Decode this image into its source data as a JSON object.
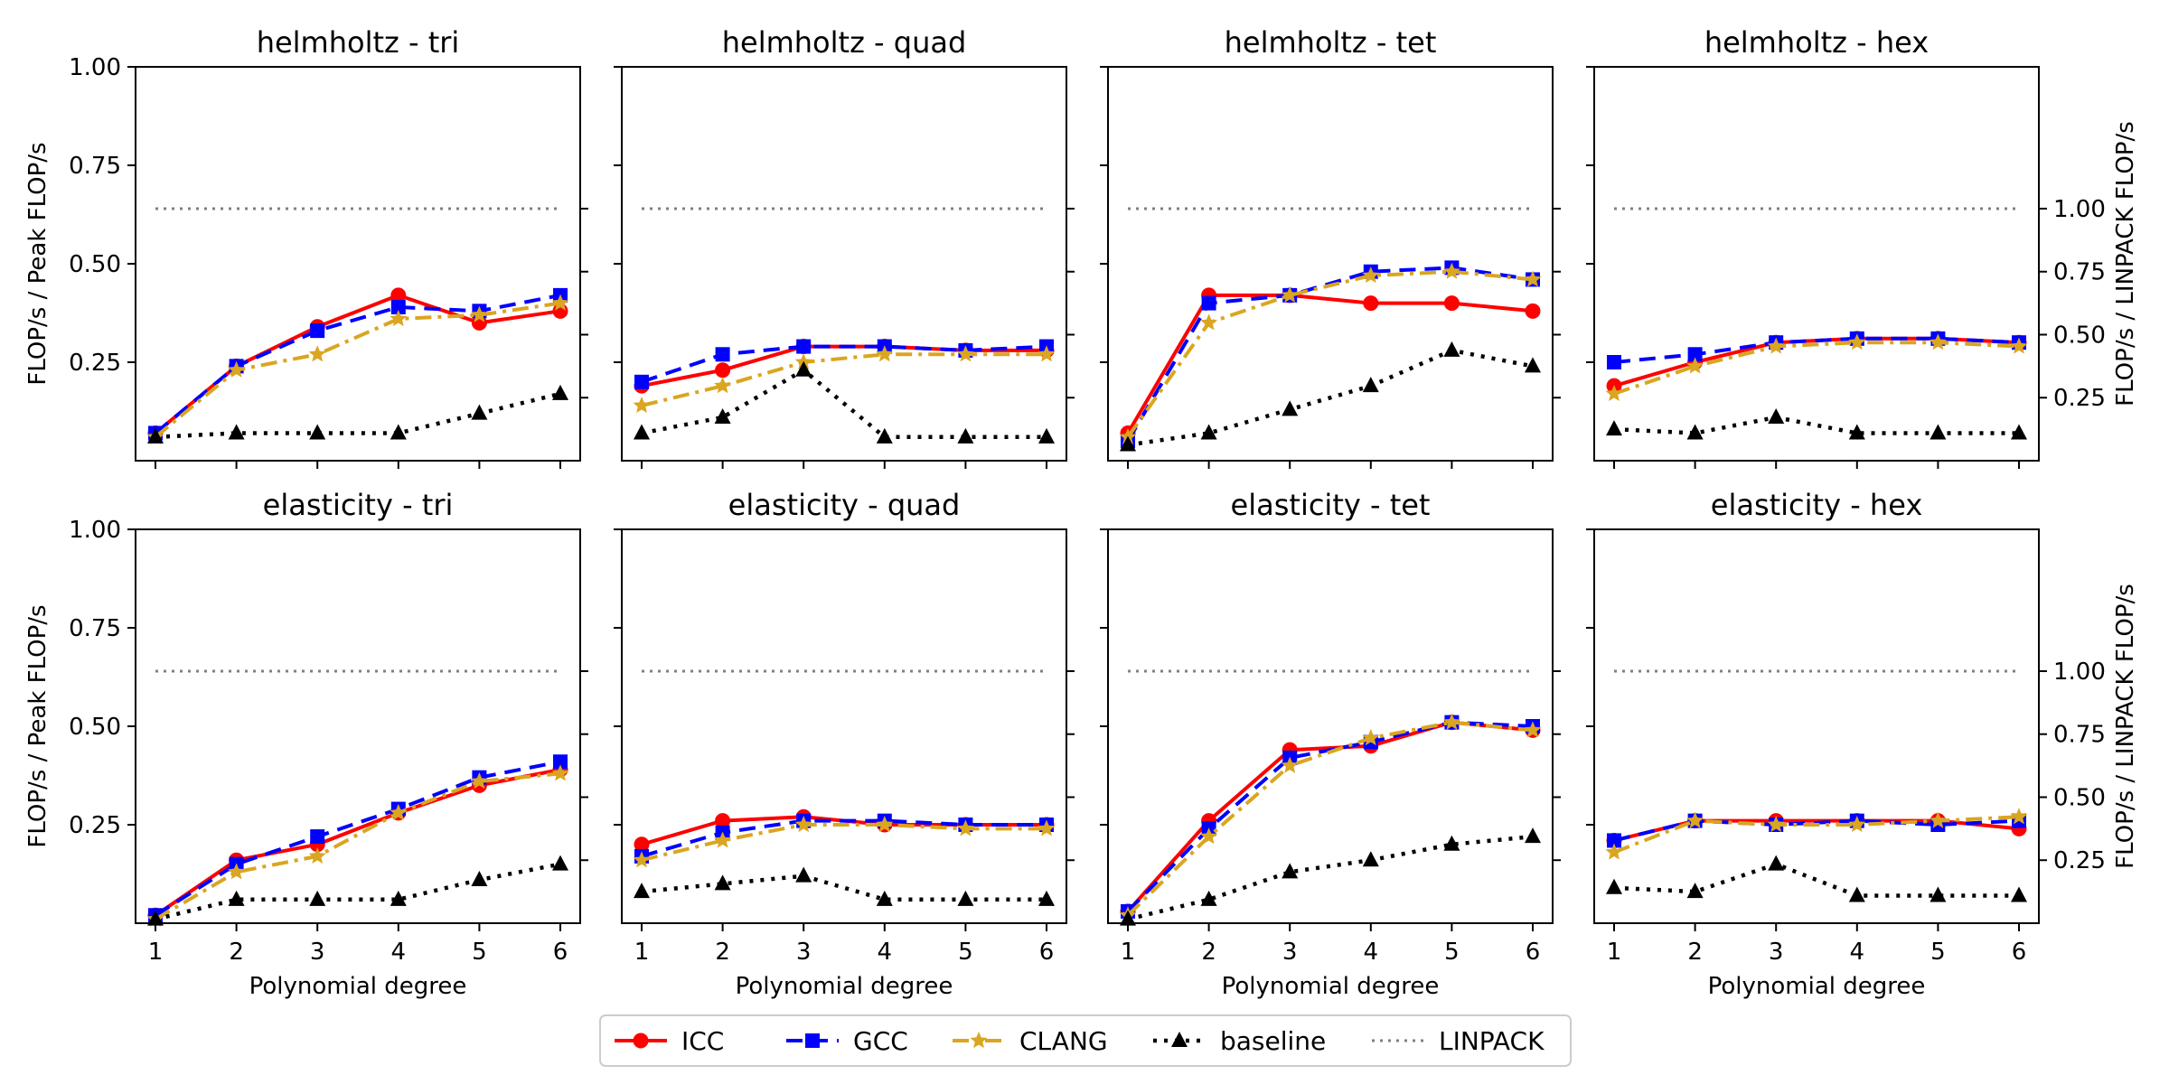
{
  "chart_data": {
    "type": "line",
    "layout": "2 rows x 4 columns of subplots with twin y-axes",
    "x_ticks": [
      1,
      2,
      3,
      4,
      5,
      6
    ],
    "xlabel": "Polynomial degree",
    "ylabel_left": "FLOP/s / Peak FLOP/s",
    "ylabel_right": "FLOP/s / LINPACK FLOP/s",
    "ylim_left": [
      0,
      1.0
    ],
    "yticks_left": [
      "0.25",
      "0.50",
      "0.75",
      "1.00"
    ],
    "yticks_right": [
      "0.25",
      "0.50",
      "0.75",
      "1.00"
    ],
    "linpack_fraction_of_peak": 0.64,
    "grid": false,
    "legend_position": "bottom-center",
    "series_styles": [
      {
        "name": "ICC",
        "color": "#ff0000",
        "dash": "",
        "marker": "circle",
        "width": 4
      },
      {
        "name": "GCC",
        "color": "#0000ff",
        "dash": "18 10",
        "marker": "square",
        "width": 4
      },
      {
        "name": "CLANG",
        "color": "#daa520",
        "dash": "18 7 4 7",
        "marker": "star",
        "width": 4
      },
      {
        "name": "baseline",
        "color": "#000000",
        "dash": "4 8",
        "marker": "triangle",
        "width": 4.5
      },
      {
        "name": "LINPACK",
        "color": "#808080",
        "dash": "3 6",
        "marker": "none",
        "width": 3
      }
    ],
    "panels": [
      {
        "title": "helmholtz - tri",
        "series": [
          {
            "name": "ICC",
            "values": [
              0.07,
              0.24,
              0.34,
              0.42,
              0.35,
              0.38
            ]
          },
          {
            "name": "GCC",
            "values": [
              0.07,
              0.24,
              0.33,
              0.39,
              0.38,
              0.42
            ]
          },
          {
            "name": "CLANG",
            "values": [
              0.06,
              0.23,
              0.27,
              0.36,
              0.37,
              0.4
            ]
          },
          {
            "name": "baseline",
            "values": [
              0.06,
              0.07,
              0.07,
              0.07,
              0.12,
              0.17
            ]
          }
        ]
      },
      {
        "title": "helmholtz - quad",
        "series": [
          {
            "name": "ICC",
            "values": [
              0.19,
              0.23,
              0.29,
              0.29,
              0.28,
              0.28
            ]
          },
          {
            "name": "GCC",
            "values": [
              0.2,
              0.27,
              0.29,
              0.29,
              0.28,
              0.29
            ]
          },
          {
            "name": "CLANG",
            "values": [
              0.14,
              0.19,
              0.25,
              0.27,
              0.27,
              0.27
            ]
          },
          {
            "name": "baseline",
            "values": [
              0.07,
              0.11,
              0.23,
              0.06,
              0.06,
              0.06
            ]
          }
        ]
      },
      {
        "title": "helmholtz - tet",
        "series": [
          {
            "name": "ICC",
            "values": [
              0.07,
              0.42,
              0.42,
              0.4,
              0.4,
              0.38
            ]
          },
          {
            "name": "GCC",
            "values": [
              0.05,
              0.4,
              0.42,
              0.48,
              0.49,
              0.46
            ]
          },
          {
            "name": "CLANG",
            "values": [
              0.06,
              0.35,
              0.42,
              0.47,
              0.48,
              0.46
            ]
          },
          {
            "name": "baseline",
            "values": [
              0.04,
              0.07,
              0.13,
              0.19,
              0.28,
              0.24
            ]
          }
        ]
      },
      {
        "title": "helmholtz - hex",
        "series": [
          {
            "name": "ICC",
            "values": [
              0.19,
              0.25,
              0.3,
              0.31,
              0.31,
              0.3
            ]
          },
          {
            "name": "GCC",
            "values": [
              0.25,
              0.27,
              0.3,
              0.31,
              0.31,
              0.3
            ]
          },
          {
            "name": "CLANG",
            "values": [
              0.17,
              0.24,
              0.29,
              0.3,
              0.3,
              0.29
            ]
          },
          {
            "name": "baseline",
            "values": [
              0.08,
              0.07,
              0.11,
              0.07,
              0.07,
              0.07
            ]
          }
        ]
      },
      {
        "title": "elasticity - tri",
        "series": [
          {
            "name": "ICC",
            "values": [
              0.02,
              0.16,
              0.2,
              0.28,
              0.35,
              0.39
            ]
          },
          {
            "name": "GCC",
            "values": [
              0.02,
              0.15,
              0.22,
              0.29,
              0.37,
              0.41
            ]
          },
          {
            "name": "CLANG",
            "values": [
              0.01,
              0.13,
              0.17,
              0.28,
              0.36,
              0.38
            ]
          },
          {
            "name": "baseline",
            "values": [
              0.01,
              0.06,
              0.06,
              0.06,
              0.11,
              0.15
            ]
          }
        ]
      },
      {
        "title": "elasticity - quad",
        "series": [
          {
            "name": "ICC",
            "values": [
              0.2,
              0.26,
              0.27,
              0.25,
              0.25,
              0.25
            ]
          },
          {
            "name": "GCC",
            "values": [
              0.17,
              0.23,
              0.26,
              0.26,
              0.25,
              0.25
            ]
          },
          {
            "name": "CLANG",
            "values": [
              0.16,
              0.21,
              0.25,
              0.25,
              0.24,
              0.24
            ]
          },
          {
            "name": "baseline",
            "values": [
              0.08,
              0.1,
              0.12,
              0.06,
              0.06,
              0.06
            ]
          }
        ]
      },
      {
        "title": "elasticity - tet",
        "series": [
          {
            "name": "ICC",
            "values": [
              0.03,
              0.26,
              0.44,
              0.45,
              0.51,
              0.49
            ]
          },
          {
            "name": "GCC",
            "values": [
              0.03,
              0.24,
              0.42,
              0.46,
              0.51,
              0.5
            ]
          },
          {
            "name": "CLANG",
            "values": [
              0.02,
              0.22,
              0.4,
              0.47,
              0.51,
              0.49
            ]
          },
          {
            "name": "baseline",
            "values": [
              0.01,
              0.06,
              0.13,
              0.16,
              0.2,
              0.22
            ]
          }
        ]
      },
      {
        "title": "elasticity - hex",
        "series": [
          {
            "name": "ICC",
            "values": [
              0.21,
              0.26,
              0.26,
              0.26,
              0.26,
              0.24
            ]
          },
          {
            "name": "GCC",
            "values": [
              0.21,
              0.26,
              0.25,
              0.26,
              0.25,
              0.26
            ]
          },
          {
            "name": "CLANG",
            "values": [
              0.18,
              0.26,
              0.25,
              0.25,
              0.26,
              0.27
            ]
          },
          {
            "name": "baseline",
            "values": [
              0.09,
              0.08,
              0.15,
              0.07,
              0.07,
              0.07
            ]
          }
        ]
      }
    ]
  },
  "legend": {
    "items": [
      "ICC",
      "GCC",
      "CLANG",
      "baseline",
      "LINPACK"
    ]
  }
}
